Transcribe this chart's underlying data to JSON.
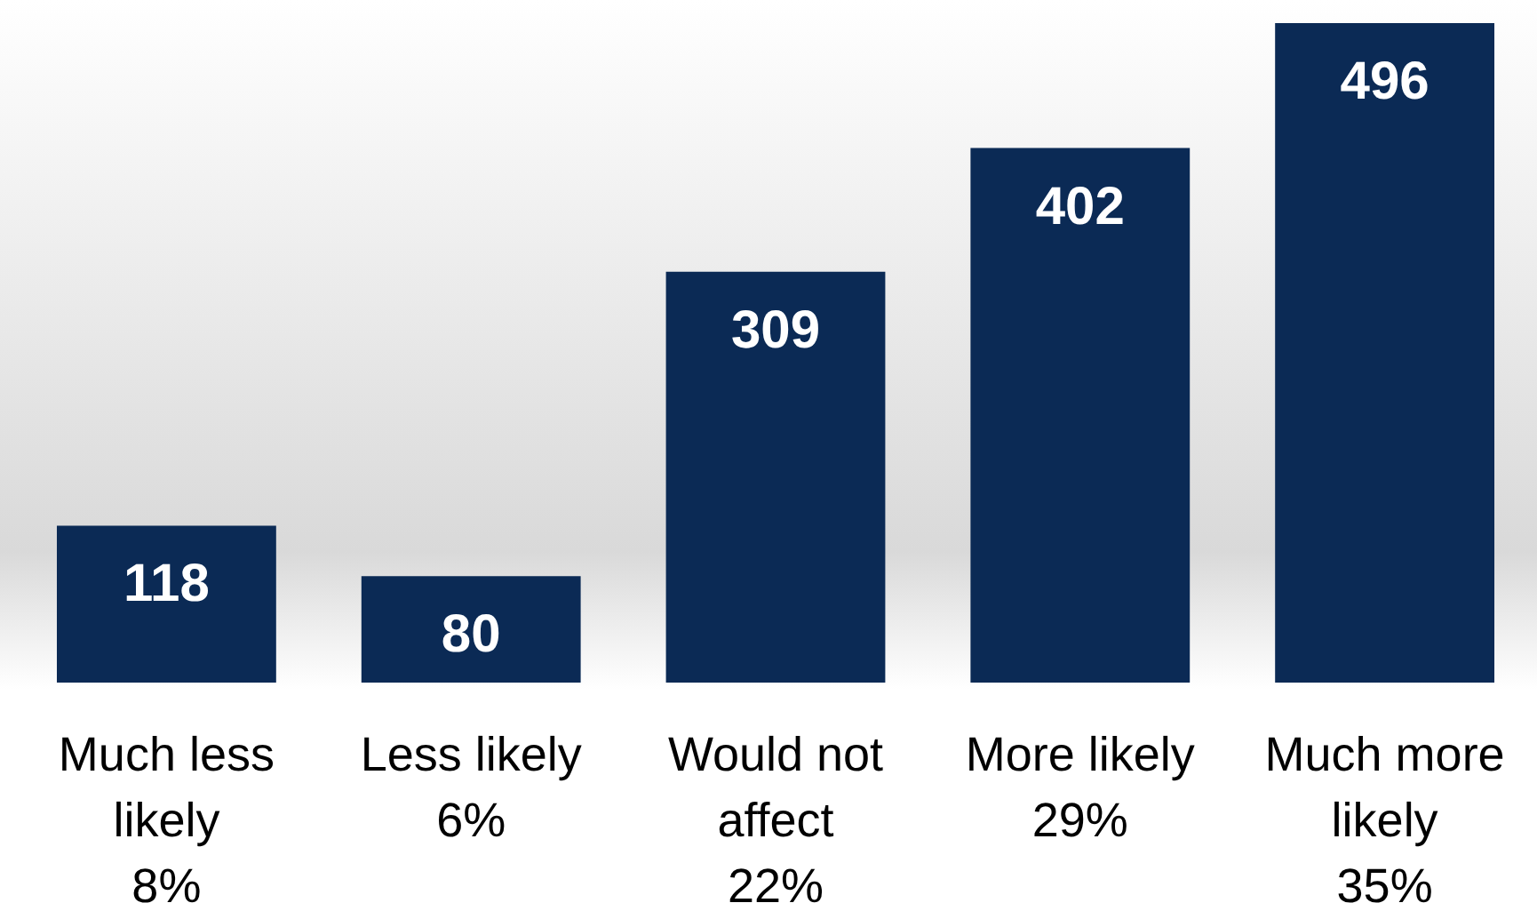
{
  "chart_data": {
    "type": "bar",
    "categories": [
      "Much less\nlikely\n8%",
      "Less likely\n6%",
      "Would not\naffect\n22%",
      "More likely\n29%",
      "Much more\nlikely\n35%"
    ],
    "values": [
      118,
      80,
      309,
      402,
      496
    ],
    "color": "#0b2a55",
    "data_labels": true
  }
}
